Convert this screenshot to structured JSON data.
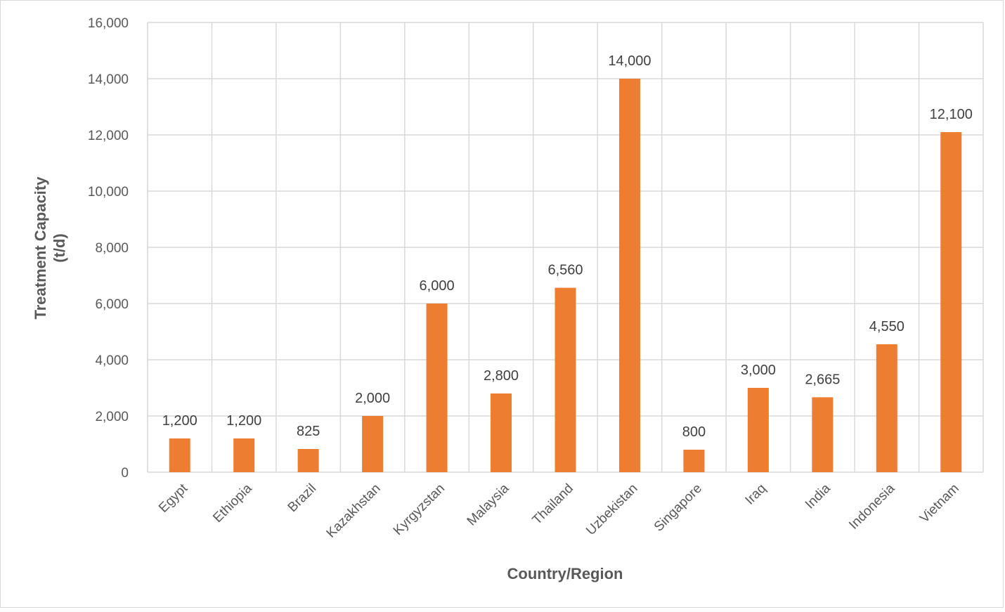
{
  "chart_data": {
    "type": "bar",
    "title": "",
    "xlabel": "Country/Region",
    "ylabel_lines": [
      "Treatment Capacity",
      "(t/d)"
    ],
    "categories": [
      "Egypt",
      "Ethiopia",
      "Brazil",
      "Kazakhstan",
      "Kyrgyzstan",
      "Malaysia",
      "Thailand",
      "Uzbekistan",
      "Singapore",
      "Iraq",
      "India",
      "Indonesia",
      "Vietnam"
    ],
    "values": [
      1200,
      1200,
      825,
      2000,
      6000,
      2800,
      6560,
      14000,
      800,
      3000,
      2665,
      4550,
      12100
    ],
    "data_labels": [
      "1,200",
      "1,200",
      "825",
      "2,000",
      "6,000",
      "2,800",
      "6,560",
      "14,000",
      "800",
      "3,000",
      "2,665",
      "4,550",
      "12,100"
    ],
    "ylim": [
      0,
      16000
    ],
    "yticks": [
      0,
      2000,
      4000,
      6000,
      8000,
      10000,
      12000,
      14000,
      16000
    ],
    "ytick_labels": [
      "0",
      "2,000",
      "4,000",
      "6,000",
      "8,000",
      "10,000",
      "12,000",
      "14,000",
      "16,000"
    ],
    "grid": "both",
    "legend": "none",
    "bar_color": "#ED7D31",
    "grid_color": "#D9D9D9"
  }
}
